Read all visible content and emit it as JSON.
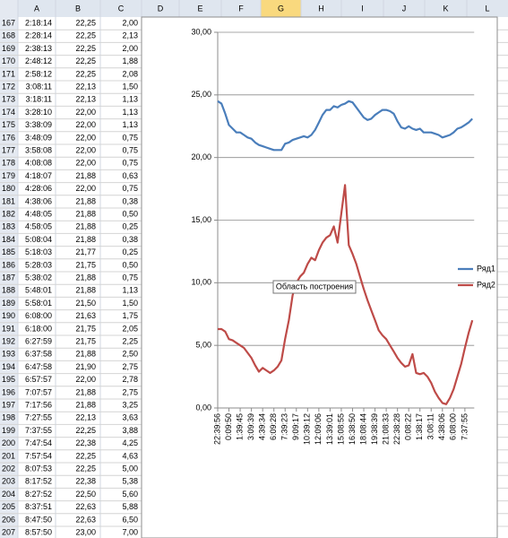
{
  "spreadsheet": {
    "columns": [
      "A",
      "B",
      "C",
      "D",
      "E",
      "F",
      "G",
      "H",
      "I",
      "J",
      "K",
      "L"
    ],
    "rows": [
      [
        "167",
        "2:18:14",
        "22,25",
        "2,00"
      ],
      [
        "168",
        "2:28:14",
        "22,25",
        "2,13"
      ],
      [
        "169",
        "2:38:13",
        "22,25",
        "2,00"
      ],
      [
        "170",
        "2:48:12",
        "22,25",
        "1,88"
      ],
      [
        "171",
        "2:58:12",
        "22,25",
        "2,08"
      ],
      [
        "172",
        "3:08:11",
        "22,13",
        "1,50"
      ],
      [
        "173",
        "3:18:11",
        "22,13",
        "1,13"
      ],
      [
        "174",
        "3:28:10",
        "22,00",
        "1,13"
      ],
      [
        "175",
        "3:38:09",
        "22,00",
        "1,13"
      ],
      [
        "176",
        "3:48:09",
        "22,00",
        "0,75"
      ],
      [
        "177",
        "3:58:08",
        "22,00",
        "0,75"
      ],
      [
        "178",
        "4:08:08",
        "22,00",
        "0,75"
      ],
      [
        "179",
        "4:18:07",
        "21,88",
        "0,63"
      ],
      [
        "180",
        "4:28:06",
        "22,00",
        "0,75"
      ],
      [
        "181",
        "4:38:06",
        "21,88",
        "0,38"
      ],
      [
        "182",
        "4:48:05",
        "21,88",
        "0,50"
      ],
      [
        "183",
        "4:58:05",
        "21,88",
        "0,25"
      ],
      [
        "184",
        "5:08:04",
        "21,88",
        "0,38"
      ],
      [
        "185",
        "5:18:03",
        "21,77",
        "0,25"
      ],
      [
        "186",
        "5:28:03",
        "21,75",
        "0,50"
      ],
      [
        "187",
        "5:38:02",
        "21,88",
        "0,75"
      ],
      [
        "188",
        "5:48:01",
        "21,88",
        "1,13"
      ],
      [
        "189",
        "5:58:01",
        "21,50",
        "1,50"
      ],
      [
        "190",
        "6:08:00",
        "21,63",
        "1,75"
      ],
      [
        "191",
        "6:18:00",
        "21,75",
        "2,05"
      ],
      [
        "192",
        "6:27:59",
        "21,75",
        "2,25"
      ],
      [
        "193",
        "6:37:58",
        "21,88",
        "2,50"
      ],
      [
        "194",
        "6:47:58",
        "21,90",
        "2,75"
      ],
      [
        "195",
        "6:57:57",
        "22,00",
        "2,78"
      ],
      [
        "196",
        "7:07:57",
        "21,88",
        "2,75"
      ],
      [
        "197",
        "7:17:56",
        "21,88",
        "3,25"
      ],
      [
        "198",
        "7:27:55",
        "22,13",
        "3,63"
      ],
      [
        "199",
        "7:37:55",
        "22,25",
        "3,88"
      ],
      [
        "200",
        "7:47:54",
        "22,38",
        "4,25"
      ],
      [
        "201",
        "7:57:54",
        "22,25",
        "4,63"
      ],
      [
        "202",
        "8:07:53",
        "22,25",
        "5,00"
      ],
      [
        "203",
        "8:17:52",
        "22,38",
        "5,38"
      ],
      [
        "204",
        "8:27:52",
        "22,50",
        "5,60"
      ],
      [
        "205",
        "8:37:51",
        "22,63",
        "5,88"
      ],
      [
        "206",
        "8:47:50",
        "22,63",
        "6,50"
      ],
      [
        "207",
        "8:57:50",
        "23,00",
        "7,00"
      ]
    ]
  },
  "chart_data": {
    "type": "line",
    "categories": [
      "22:39:56",
      null,
      null,
      "0:09:50",
      null,
      null,
      "1:39:45",
      null,
      null,
      "3:09:39",
      null,
      null,
      "4:39:34",
      null,
      null,
      "6:09:28",
      null,
      null,
      "7:39:23",
      null,
      null,
      "9:09:17",
      null,
      null,
      "10:39:12",
      null,
      null,
      "12:09:06",
      null,
      null,
      "13:39:01",
      null,
      null,
      "15:08:55",
      null,
      null,
      "16:38:50",
      null,
      null,
      "18:08:44",
      null,
      null,
      "19:38:39",
      null,
      null,
      "21:08:33",
      null,
      null,
      "22:38:28",
      null,
      null,
      "0:08:22",
      null,
      null,
      "1:38:17",
      null,
      null,
      "3:08:11",
      null,
      null,
      "4:38:06",
      null,
      null,
      "6:08:00",
      null,
      null,
      "7:37:55",
      null,
      null
    ],
    "series": [
      {
        "name": "Ряд1",
        "color": "#4a7ebb",
        "values": [
          24.5,
          24.3,
          23.5,
          22.6,
          22.3,
          22.0,
          22.0,
          21.8,
          21.6,
          21.5,
          21.2,
          21.0,
          20.9,
          20.8,
          20.7,
          20.6,
          20.6,
          20.6,
          21.1,
          21.2,
          21.4,
          21.5,
          21.6,
          21.7,
          21.6,
          21.8,
          22.2,
          22.8,
          23.4,
          23.8,
          23.8,
          24.1,
          24.0,
          24.2,
          24.3,
          24.5,
          24.4,
          24.0,
          23.6,
          23.2,
          23.0,
          23.1,
          23.4,
          23.6,
          23.8,
          23.8,
          23.7,
          23.5,
          22.9,
          22.4,
          22.3,
          22.5,
          22.3,
          22.2,
          22.3,
          22.0,
          22.0,
          22.0,
          21.9,
          21.8,
          21.6,
          21.7,
          21.8,
          22.0,
          22.3,
          22.4,
          22.6,
          22.8,
          23.1
        ]
      },
      {
        "name": "Ряд2",
        "color": "#be4b48",
        "values": [
          6.3,
          6.3,
          6.1,
          5.5,
          5.4,
          5.2,
          5.0,
          4.8,
          4.4,
          4.0,
          3.4,
          2.9,
          3.2,
          3.0,
          2.8,
          3.0,
          3.3,
          3.8,
          5.5,
          7.0,
          9.0,
          10.0,
          10.5,
          10.8,
          11.5,
          12.0,
          11.8,
          12.6,
          13.2,
          13.6,
          13.8,
          14.5,
          13.2,
          15.5,
          17.8,
          13.0,
          12.3,
          11.5,
          10.5,
          9.5,
          8.6,
          7.8,
          7.0,
          6.2,
          5.8,
          5.5,
          5.0,
          4.5,
          4.0,
          3.6,
          3.3,
          3.4,
          4.3,
          2.8,
          2.7,
          2.8,
          2.5,
          2.0,
          1.3,
          0.8,
          0.4,
          0.3,
          0.8,
          1.5,
          2.5,
          3.5,
          4.8,
          6.0,
          7.0
        ]
      }
    ],
    "ylim": [
      0,
      30
    ],
    "yticks": [
      {
        "value": 0,
        "label": "0,00"
      },
      {
        "value": 5,
        "label": "5,00"
      },
      {
        "value": 10,
        "label": "10,00"
      },
      {
        "value": 15,
        "label": "15,00"
      },
      {
        "value": 20,
        "label": "20,00"
      },
      {
        "value": 25,
        "label": "25,00"
      },
      {
        "value": 30,
        "label": "30,00"
      }
    ],
    "grid": true,
    "legend": "right"
  },
  "tooltip": "Область построения"
}
